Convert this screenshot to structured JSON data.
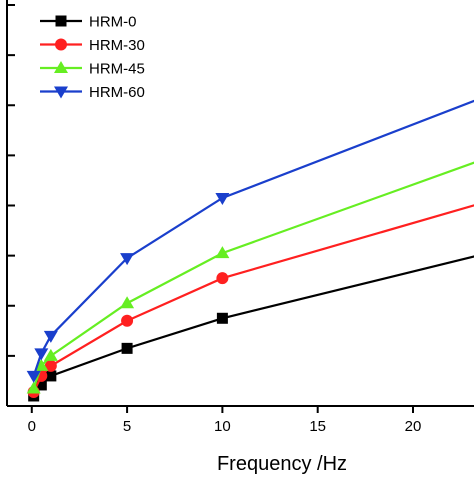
{
  "chart_data": {
    "type": "line",
    "title": "",
    "xlabel": "Frequency /Hz",
    "ylabel": "",
    "xlim": [
      -1.3,
      23.2
    ],
    "ylim": [
      0,
      8.1
    ],
    "x_ticks": [
      0,
      5,
      10,
      15,
      20
    ],
    "x_tick_labels": [
      "0",
      "5",
      "10",
      "15",
      "20"
    ],
    "y_ticks": [
      0,
      1,
      2,
      3,
      4,
      5,
      6,
      7,
      8
    ],
    "grid": false,
    "legend_position": "top-left",
    "series": [
      {
        "name": "HRM-0",
        "color": "#000000",
        "marker": "square",
        "x": [
          0.1,
          0.5,
          1,
          5,
          10,
          25
        ],
        "y": [
          0.2,
          0.42,
          0.6,
          1.15,
          1.75,
          3.15
        ]
      },
      {
        "name": "HRM-30",
        "color": "#ff2020",
        "marker": "circle",
        "x": [
          0.1,
          0.5,
          1,
          5,
          10,
          25
        ],
        "y": [
          0.28,
          0.6,
          0.8,
          1.7,
          2.55,
          4.2
        ]
      },
      {
        "name": "HRM-45",
        "color": "#66ee22",
        "marker": "triangle-up",
        "x": [
          0.1,
          0.5,
          1,
          5,
          10,
          25
        ],
        "y": [
          0.35,
          0.8,
          1.0,
          2.05,
          3.05,
          5.1
        ]
      },
      {
        "name": "HRM-60",
        "color": "#1a3fcc",
        "marker": "triangle-down",
        "x": [
          0.1,
          0.5,
          1,
          5,
          10,
          25
        ],
        "y": [
          0.6,
          1.05,
          1.4,
          2.95,
          4.15,
          6.35
        ]
      }
    ]
  }
}
